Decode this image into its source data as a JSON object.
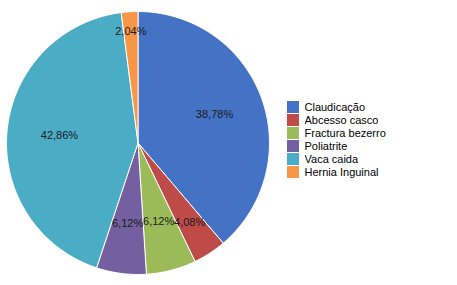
{
  "chart_data": {
    "type": "pie",
    "categories": [
      "Claudicação",
      "Abcesso casco",
      "Fractura bezerro",
      "Poliatrite",
      "Vaca caida",
      "Hernia Inguinal"
    ],
    "values": [
      38.78,
      4.08,
      6.12,
      6.12,
      42.86,
      2.04
    ],
    "value_labels": [
      "38,78%",
      "4,08%",
      "6,12%",
      "6,12%",
      "42,86%",
      "2,04%"
    ],
    "colors": [
      "#4472C4",
      "#BE4B48",
      "#9BBB59",
      "#7460A0",
      "#4BACC6",
      "#F79646"
    ],
    "data_labels": true,
    "legend": "right"
  }
}
